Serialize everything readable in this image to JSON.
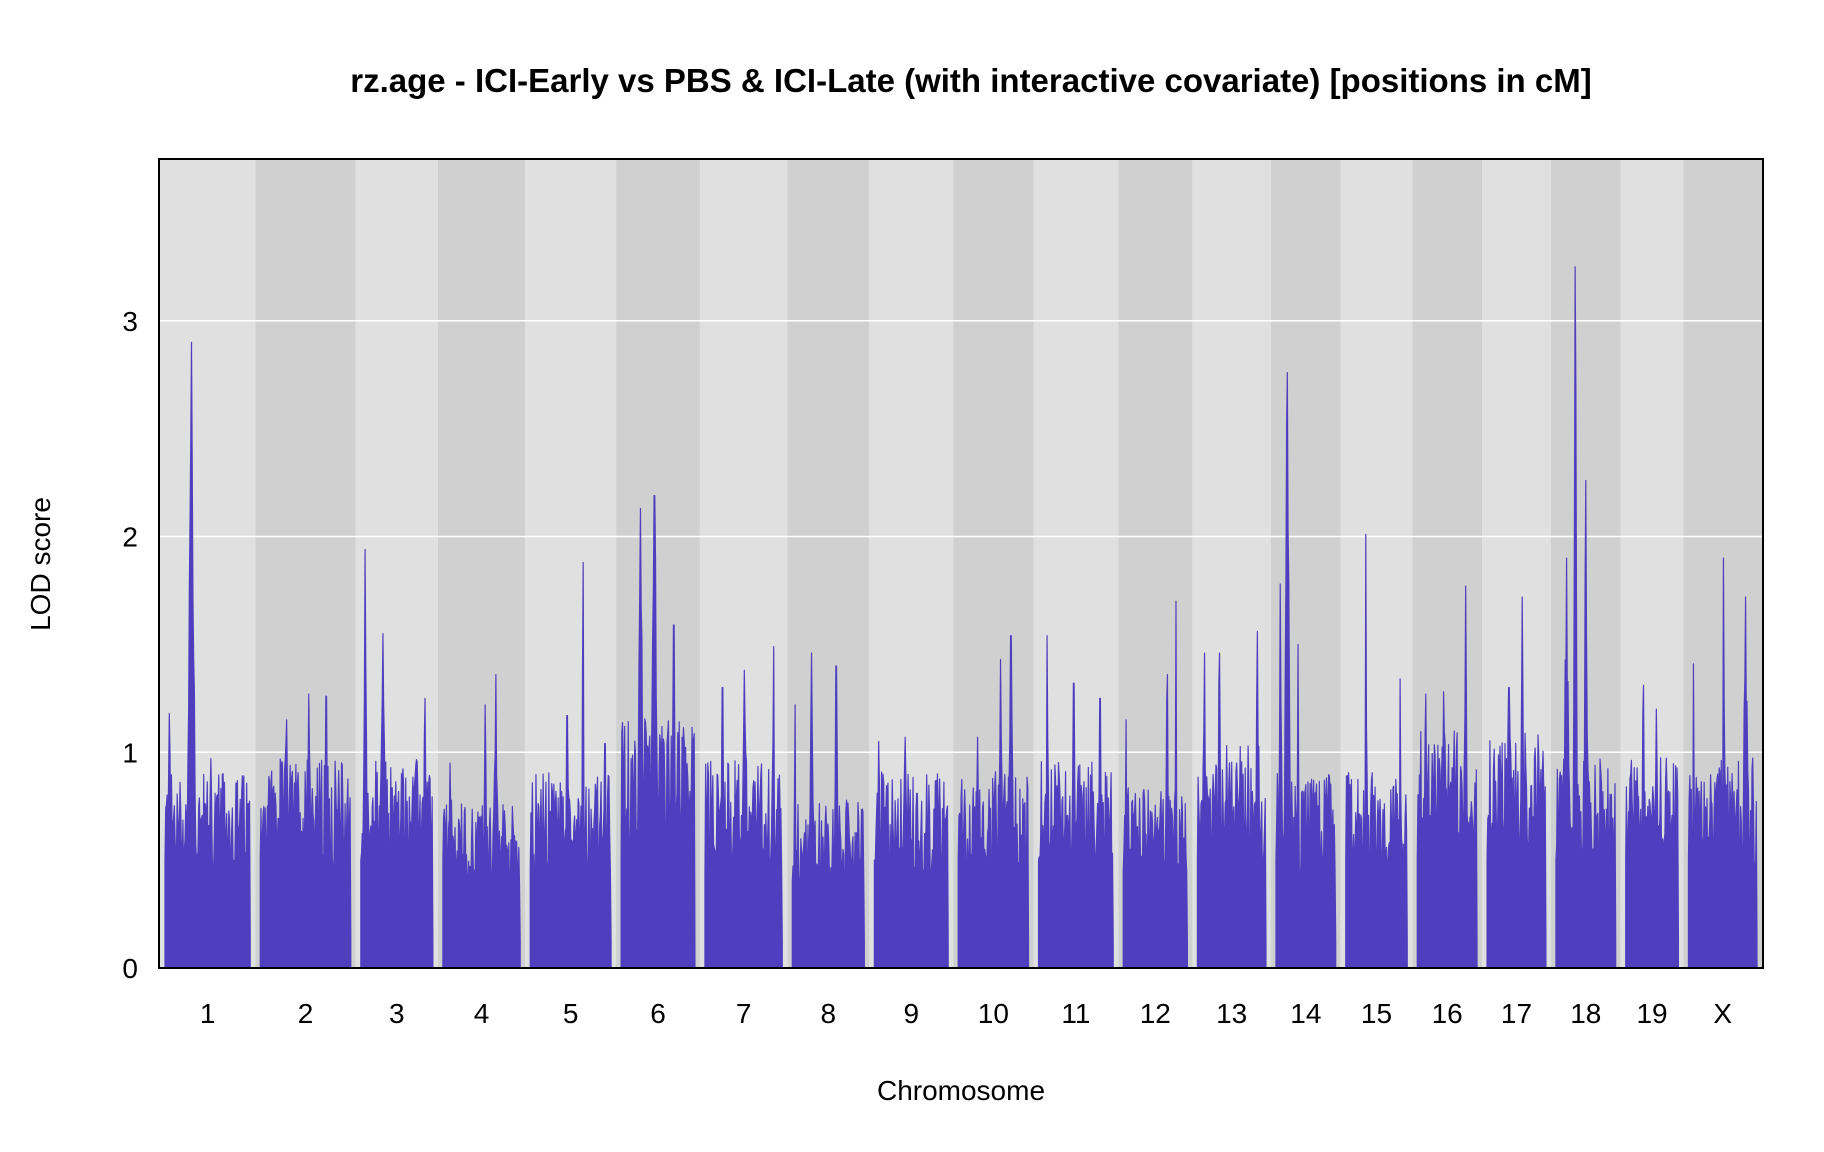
{
  "chart_data": {
    "type": "line",
    "title": "rz.age - ICI-Early vs PBS & ICI-Late (with interactive covariate) [positions in cM]",
    "xlabel": "Chromosome",
    "ylabel": "LOD score",
    "ylim": [
      0,
      3.75
    ],
    "yticks": [
      0,
      1,
      2,
      3
    ],
    "grid": true,
    "colors": {
      "line": "#4f3fbf",
      "band_light": "#e0e0e0",
      "band_dark": "#d0d0d0",
      "grid": "#ffffff"
    },
    "chromosomes": [
      {
        "name": "1",
        "length": 97,
        "base": 0.7,
        "peaks": [
          [
            30,
            2.9,
            4
          ],
          [
            5,
            1.18,
            2
          ],
          [
            52,
            0.97,
            2
          ]
        ]
      },
      {
        "name": "2",
        "length": 103,
        "base": 0.75,
        "peaks": [
          [
            55,
            1.27,
            3
          ],
          [
            75,
            1.26,
            2
          ],
          [
            30,
            1.15,
            3
          ]
        ]
      },
      {
        "name": "3",
        "length": 82,
        "base": 0.75,
        "peaks": [
          [
            5,
            1.94,
            2
          ],
          [
            25,
            1.55,
            3
          ],
          [
            73,
            1.25,
            2
          ]
        ]
      },
      {
        "name": "4",
        "length": 88,
        "base": 0.6,
        "peaks": [
          [
            60,
            1.36,
            3
          ],
          [
            48,
            1.22,
            2
          ],
          [
            8,
            0.95,
            2
          ]
        ]
      },
      {
        "name": "5",
        "length": 92,
        "base": 0.7,
        "peaks": [
          [
            60,
            1.88,
            1
          ],
          [
            42,
            1.17,
            2
          ],
          [
            85,
            1.04,
            2
          ]
        ]
      },
      {
        "name": "6",
        "length": 84,
        "base": 0.9,
        "peaks": [
          [
            38,
            2.19,
            4
          ],
          [
            22,
            2.13,
            3
          ],
          [
            60,
            1.59,
            2
          ]
        ]
      },
      {
        "name": "7",
        "length": 88,
        "base": 0.75,
        "peaks": [
          [
            78,
            1.49,
            1
          ],
          [
            45,
            1.38,
            3
          ],
          [
            20,
            1.3,
            2
          ]
        ]
      },
      {
        "name": "8",
        "length": 82,
        "base": 0.6,
        "peaks": [
          [
            22,
            1.46,
            2
          ],
          [
            50,
            1.4,
            2
          ],
          [
            3,
            1.22,
            1
          ]
        ]
      },
      {
        "name": "9",
        "length": 84,
        "base": 0.7,
        "peaks": [
          [
            35,
            1.07,
            3
          ],
          [
            5,
            1.05,
            2
          ],
          [
            72,
            0.9,
            2
          ]
        ]
      },
      {
        "name": "10",
        "length": 80,
        "base": 0.7,
        "peaks": [
          [
            60,
            1.54,
            3
          ],
          [
            48,
            1.43,
            2
          ],
          [
            22,
            1.07,
            2
          ]
        ]
      },
      {
        "name": "11",
        "length": 85,
        "base": 0.75,
        "peaks": [
          [
            10,
            1.54,
            1
          ],
          [
            40,
            1.32,
            2
          ],
          [
            70,
            1.25,
            2
          ]
        ]
      },
      {
        "name": "12",
        "length": 73,
        "base": 0.65,
        "peaks": [
          [
            60,
            1.7,
            1
          ],
          [
            50,
            1.36,
            2
          ],
          [
            3,
            1.15,
            1
          ]
        ]
      },
      {
        "name": "13",
        "length": 78,
        "base": 0.8,
        "peaks": [
          [
            68,
            1.56,
            2
          ],
          [
            25,
            1.46,
            2
          ],
          [
            8,
            1.46,
            2
          ]
        ]
      },
      {
        "name": "14",
        "length": 68,
        "base": 0.7,
        "peaks": [
          [
            13,
            2.76,
            3
          ],
          [
            5,
            1.78,
            2
          ],
          [
            25,
            1.5,
            1
          ]
        ]
      },
      {
        "name": "15",
        "length": 70,
        "base": 0.7,
        "peaks": [
          [
            23,
            2.01,
            1
          ],
          [
            62,
            1.34,
            1
          ],
          [
            5,
            0.85,
            2
          ]
        ]
      },
      {
        "name": "16",
        "length": 68,
        "base": 0.85,
        "peaks": [
          [
            55,
            1.77,
            2
          ],
          [
            30,
            1.28,
            3
          ],
          [
            10,
            1.27,
            2
          ]
        ]
      },
      {
        "name": "17",
        "length": 67,
        "base": 0.85,
        "peaks": [
          [
            40,
            1.72,
            2
          ],
          [
            25,
            1.3,
            2
          ],
          [
            58,
            1.08,
            2
          ]
        ]
      },
      {
        "name": "18",
        "length": 68,
        "base": 0.75,
        "peaks": [
          [
            22,
            3.25,
            2
          ],
          [
            34,
            2.26,
            2
          ],
          [
            12,
            1.9,
            3
          ]
        ]
      },
      {
        "name": "19",
        "length": 60,
        "base": 0.75,
        "peaks": [
          [
            20,
            1.31,
            2
          ],
          [
            35,
            1.2,
            2
          ],
          [
            5,
            0.88,
            1
          ]
        ]
      },
      {
        "name": "X",
        "length": 78,
        "base": 0.75,
        "peaks": [
          [
            40,
            1.9,
            1
          ],
          [
            65,
            1.72,
            3
          ],
          [
            6,
            1.41,
            1
          ]
        ]
      }
    ]
  }
}
